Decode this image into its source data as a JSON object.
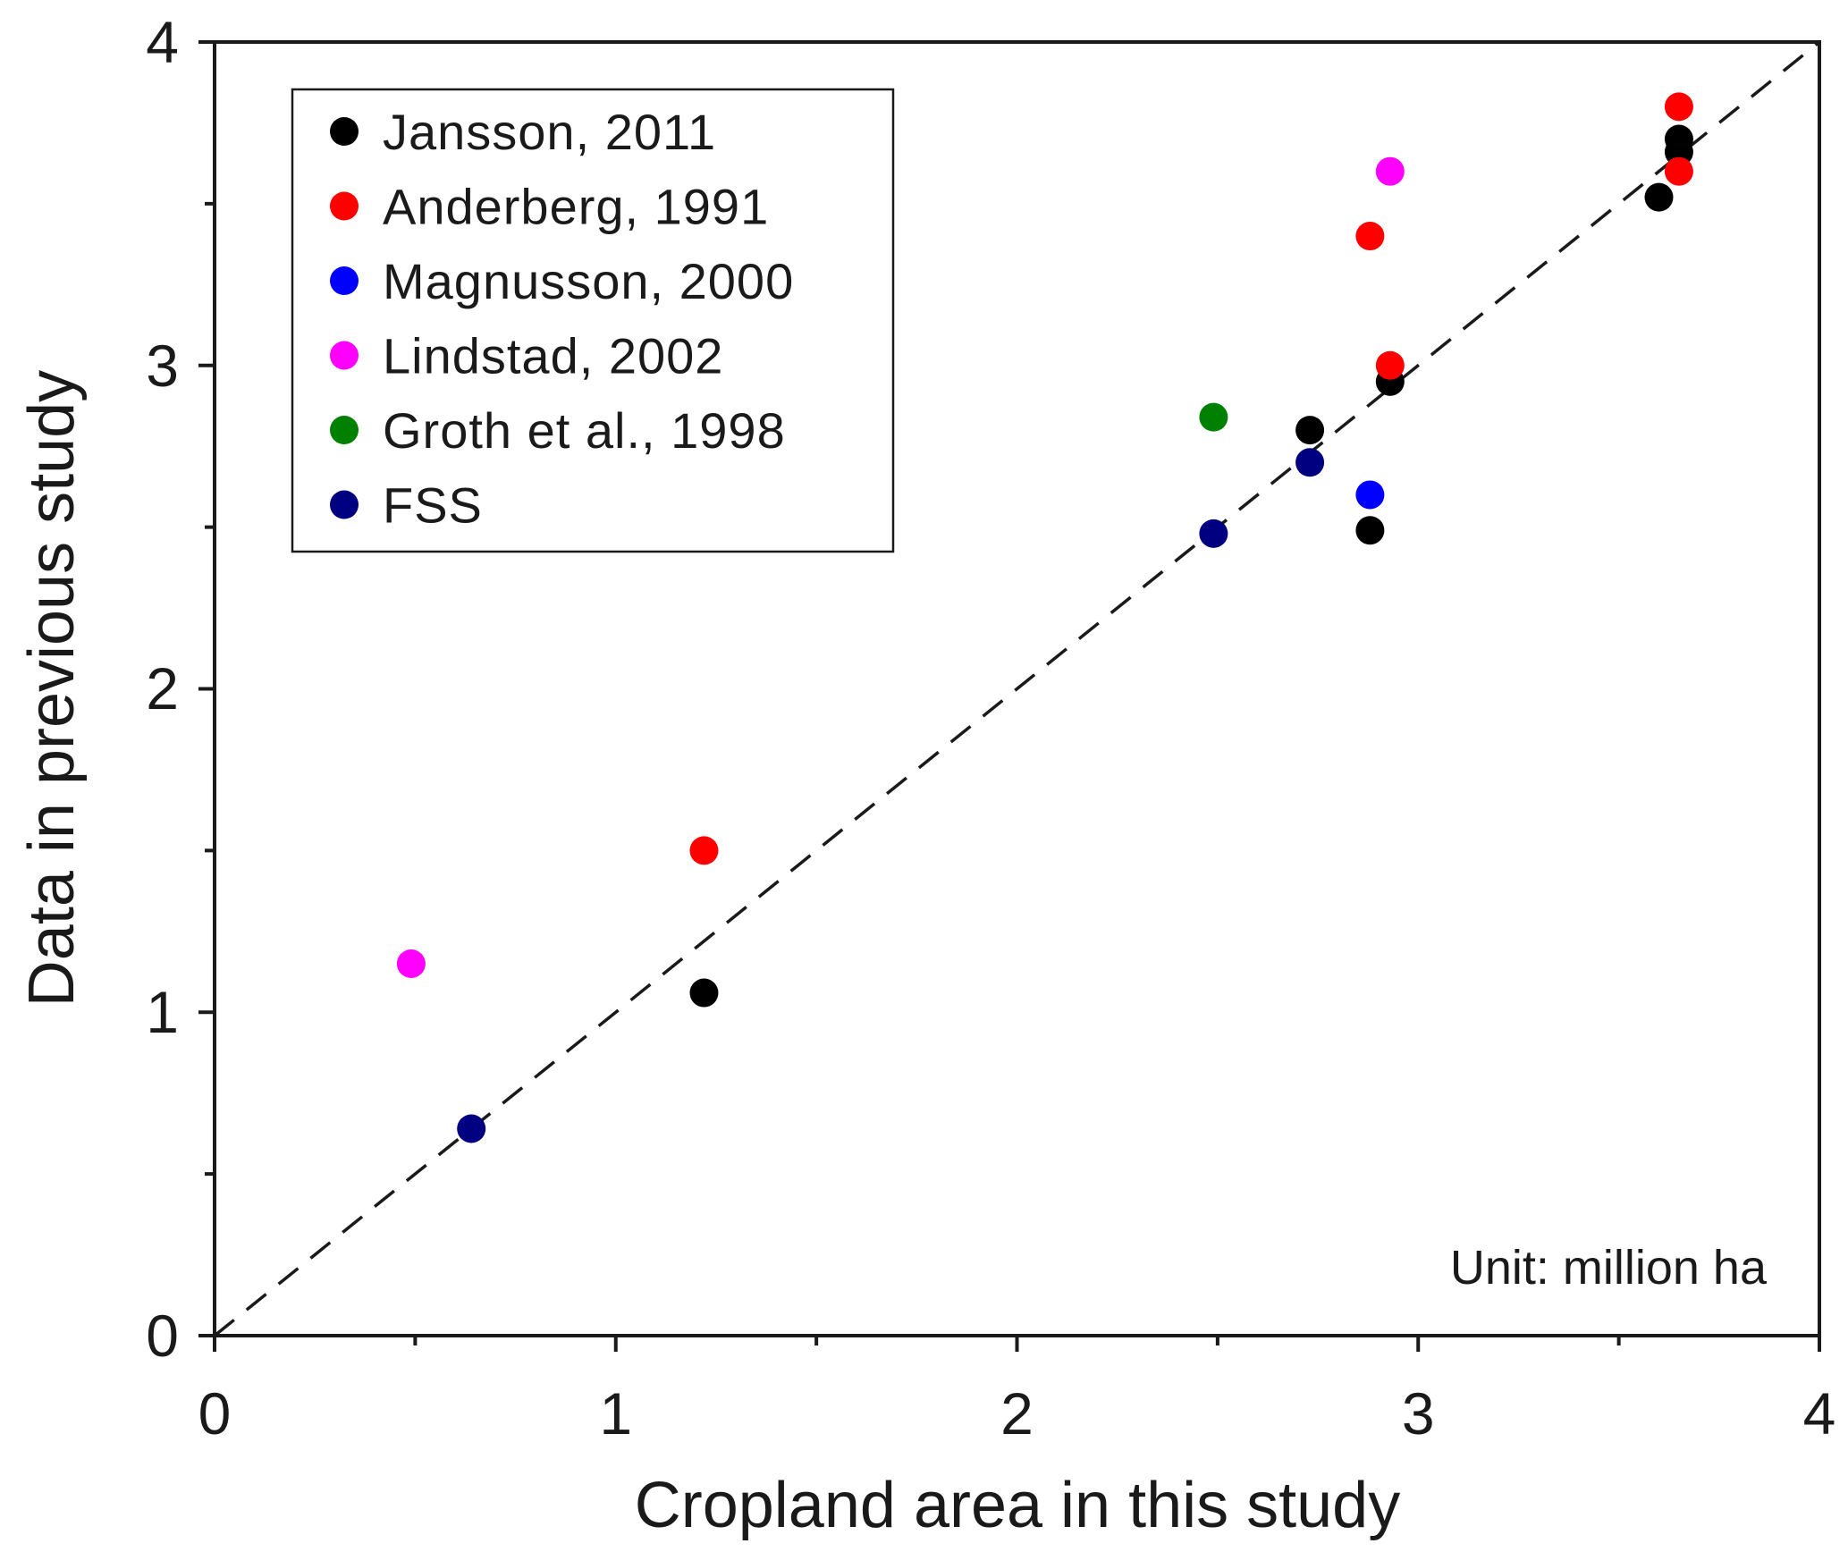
{
  "chart_data": {
    "type": "scatter",
    "title": "",
    "xlabel": "Cropland area in this study",
    "ylabel": "Data in previous study",
    "xlim": [
      0,
      4
    ],
    "ylim": [
      0,
      4
    ],
    "x_ticks": [
      "0",
      "1",
      "2",
      "3",
      "4"
    ],
    "y_ticks": [
      "0",
      "1",
      "2",
      "3",
      "4"
    ],
    "grid": false,
    "legend_position": "top-left",
    "annotation": "Unit: million ha",
    "reference_line": {
      "style": "dashed",
      "from": [
        0,
        0
      ],
      "to": [
        4,
        4
      ]
    },
    "series": [
      {
        "name": "Jansson, 2011",
        "color": "#000000",
        "points": [
          [
            1.22,
            1.06
          ],
          [
            2.73,
            2.8
          ],
          [
            2.88,
            2.49
          ],
          [
            2.93,
            2.95
          ],
          [
            3.6,
            3.52
          ],
          [
            3.65,
            3.66
          ],
          [
            3.65,
            3.7
          ]
        ]
      },
      {
        "name": "Anderberg, 1991",
        "color": "#ff0000",
        "points": [
          [
            1.22,
            1.5
          ],
          [
            2.88,
            3.4
          ],
          [
            2.93,
            3.0
          ],
          [
            3.65,
            3.6
          ],
          [
            3.65,
            3.8
          ]
        ]
      },
      {
        "name": "Magnusson, 2000",
        "color": "#0000ff",
        "points": [
          [
            2.88,
            2.6
          ]
        ]
      },
      {
        "name": "Lindstad, 2002",
        "color": "#ff00ff",
        "points": [
          [
            0.49,
            1.15
          ],
          [
            2.93,
            3.6
          ]
        ]
      },
      {
        "name": "Groth et al., 1998",
        "color": "#008000",
        "points": [
          [
            2.49,
            2.84
          ]
        ]
      },
      {
        "name": "FSS",
        "color": "#000080",
        "points": [
          [
            0.64,
            0.64
          ],
          [
            2.49,
            2.48
          ],
          [
            2.73,
            2.7
          ]
        ]
      }
    ]
  }
}
